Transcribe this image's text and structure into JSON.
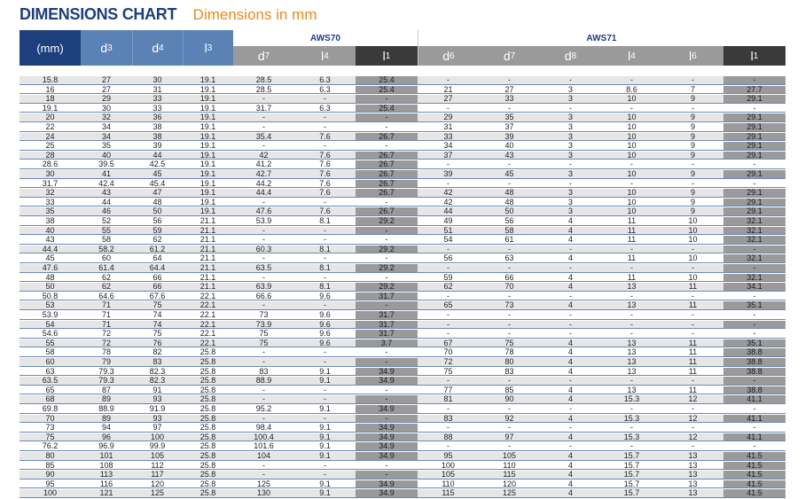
{
  "title": "DIMENSIONS CHART",
  "subtitle": "Dimensions in mm",
  "groups": {
    "aws70": "AWS70",
    "aws71": "AWS71"
  },
  "headers": {
    "mm": "(mm)",
    "d3": "d",
    "d3s": "3",
    "d4": "d",
    "d4s": "4",
    "l3": "l",
    "l3s": "3",
    "a70_d7": "d",
    "a70_d7s": "7",
    "a70_l4": "l",
    "a70_l4s": "4",
    "a70_l1": "l",
    "a70_l1s": "1",
    "a71_d6": "d",
    "a71_d6s": "6",
    "a71_d7": "d",
    "a71_d7s": "7",
    "a71_d8": "d",
    "a71_d8s": "8",
    "a71_l4": "l",
    "a71_l4s": "4",
    "a71_l6": "l",
    "a71_l6s": "6",
    "a71_l1": "l",
    "a71_l1s": "1"
  },
  "colors": {
    "header_dark": "#1d3f7c",
    "header_mid": "#5b82b5",
    "header_grey": "#9a9a9a",
    "header_black": "#3a3a3a",
    "accent": "#e8891c"
  },
  "rows": [
    [
      "15.8",
      "27",
      "30",
      "19.1",
      "28.5",
      "6.3",
      "25.4",
      "-",
      "-",
      "-",
      "-",
      "-",
      "-"
    ],
    [
      "16",
      "27",
      "31",
      "19.1",
      "28.5",
      "6.3",
      "25.4",
      "21",
      "27",
      "3",
      "8.6",
      "7",
      "27.7"
    ],
    [
      "18",
      "29",
      "33",
      "19.1",
      "-",
      "-",
      "-",
      "27",
      "33",
      "3",
      "10",
      "9",
      "29.1"
    ],
    [
      "19.1",
      "30",
      "33",
      "19.1",
      "31.7",
      "6.3",
      "25.4",
      "-",
      "-",
      "-",
      "-",
      "-",
      "-"
    ],
    [
      "20",
      "32",
      "36",
      "19.1",
      "-",
      "-",
      "-",
      "29",
      "35",
      "3",
      "10",
      "9",
      "29.1"
    ],
    [
      "22",
      "34",
      "38",
      "19.1",
      "-",
      "-",
      "-",
      "31",
      "37",
      "3",
      "10",
      "9",
      "29.1"
    ],
    [
      "24",
      "34",
      "38",
      "19.1",
      "35.4",
      "7.6",
      "26.7",
      "33",
      "39",
      "3",
      "10",
      "9",
      "29.1"
    ],
    [
      "25",
      "35",
      "39",
      "19.1",
      "-",
      "-",
      "-",
      "34",
      "40",
      "3",
      "10",
      "9",
      "29.1"
    ],
    [
      "28",
      "40",
      "44",
      "19.1",
      "42",
      "7.6",
      "26.7",
      "37",
      "43",
      "3",
      "10",
      "9",
      "29.1"
    ],
    [
      "28.6",
      "39.5",
      "42.5",
      "19.1",
      "41.2",
      "7.6",
      "26.7",
      "-",
      "-",
      "-",
      "-",
      "-",
      "-"
    ],
    [
      "30",
      "41",
      "45",
      "19.1",
      "42.7",
      "7.6",
      "26.7",
      "39",
      "45",
      "3",
      "10",
      "9",
      "29.1"
    ],
    [
      "31.7",
      "42.4",
      "45.4",
      "19.1",
      "44.2",
      "7.6",
      "26.7",
      "-",
      "-",
      "-",
      "-",
      "-",
      "-"
    ],
    [
      "32",
      "43",
      "47",
      "19.1",
      "44.4",
      "7.6",
      "26.7",
      "42",
      "48",
      "3",
      "10",
      "9",
      "29.1"
    ],
    [
      "33",
      "44",
      "48",
      "19.1",
      "-",
      "-",
      "-",
      "42",
      "48",
      "3",
      "10",
      "9",
      "29.1"
    ],
    [
      "35",
      "46",
      "50",
      "19.1",
      "47.6",
      "7.6",
      "26.7",
      "44",
      "50",
      "3",
      "10",
      "9",
      "29.1"
    ],
    [
      "38",
      "52",
      "56",
      "21.1",
      "53.9",
      "8.1",
      "29.2",
      "49",
      "56",
      "4",
      "11",
      "10",
      "32.1"
    ],
    [
      "40",
      "55",
      "59",
      "21.1",
      "-",
      "-",
      "-",
      "51",
      "58",
      "4",
      "11",
      "10",
      "32.1"
    ],
    [
      "43",
      "58",
      "62",
      "21.1",
      "-",
      "-",
      "-",
      "54",
      "61",
      "4",
      "11",
      "10",
      "32.1"
    ],
    [
      "44.4",
      "58.2",
      "61.2",
      "21.1",
      "60.3",
      "8.1",
      "29.2",
      "-",
      "-",
      "-",
      "-",
      "-",
      "-"
    ],
    [
      "45",
      "60",
      "64",
      "21.1",
      "-",
      "-",
      "-",
      "56",
      "63",
      "4",
      "11",
      "10",
      "32.1"
    ],
    [
      "47.6",
      "61.4",
      "64.4",
      "21.1",
      "63.5",
      "8.1",
      "29.2",
      "-",
      "-",
      "-",
      "-",
      "-",
      "-"
    ],
    [
      "48",
      "62",
      "66",
      "21.1",
      "-",
      "-",
      "-",
      "59",
      "66",
      "4",
      "11",
      "10",
      "32.1"
    ],
    [
      "50",
      "62",
      "66",
      "21.1",
      "63.9",
      "8.1",
      "29.2",
      "62",
      "70",
      "4",
      "13",
      "11",
      "34.1"
    ],
    [
      "50.8",
      "64.6",
      "67.6",
      "22.1",
      "66.6",
      "9.6",
      "31.7",
      "-",
      "-",
      "-",
      "-",
      "-",
      "-"
    ],
    [
      "53",
      "71",
      "75",
      "22.1",
      "-",
      "-",
      "-",
      "65",
      "73",
      "4",
      "13",
      "11",
      "35.1"
    ],
    [
      "53.9",
      "71",
      "74",
      "22.1",
      "73",
      "9.6",
      "31.7",
      "-",
      "-",
      "-",
      "-",
      "-",
      "-"
    ],
    [
      "54",
      "71",
      "74",
      "22.1",
      "73.9",
      "9.6",
      "31.7",
      "-",
      "-",
      "-",
      "-",
      "-",
      "-"
    ],
    [
      "54.6",
      "72",
      "75",
      "22.1",
      "75",
      "9.6",
      "31.7",
      "-",
      "-",
      "-",
      "-",
      "-",
      "-"
    ],
    [
      "55",
      "72",
      "76",
      "22.1",
      "75",
      "9.6",
      "3.7",
      "67",
      "75",
      "4",
      "13",
      "11",
      "35.1"
    ],
    [
      "58",
      "78",
      "82",
      "25.8",
      "-",
      "-",
      "-",
      "70",
      "78",
      "4",
      "13",
      "11",
      "38.8"
    ],
    [
      "60",
      "79",
      "83",
      "25.8",
      "-",
      "-",
      "-",
      "72",
      "80",
      "4",
      "13",
      "11",
      "38.8"
    ],
    [
      "63",
      "79.3",
      "82.3",
      "25.8",
      "83",
      "9.1",
      "34.9",
      "75",
      "83",
      "4",
      "13",
      "11",
      "38.8"
    ],
    [
      "63.5",
      "79.3",
      "82.3",
      "25.8",
      "88.9",
      "9.1",
      "34.9",
      "-",
      "-",
      "-",
      "-",
      "-",
      "-"
    ],
    [
      "65",
      "87",
      "91",
      "25.8",
      "-",
      "-",
      "-",
      "77",
      "85",
      "4",
      "13",
      "11",
      "38.8"
    ],
    [
      "68",
      "89",
      "93",
      "25.8",
      "-",
      "-",
      "-",
      "81",
      "90",
      "4",
      "15.3",
      "12",
      "41.1"
    ],
    [
      "69.8",
      "88.9",
      "91.9",
      "25.8",
      "95.2",
      "9.1",
      "34.9",
      "-",
      "-",
      "-",
      "-",
      "-",
      "-"
    ],
    [
      "70",
      "89",
      "93",
      "25.8",
      "-",
      "-",
      "-",
      "83",
      "92",
      "4",
      "15.3",
      "12",
      "41.1"
    ],
    [
      "73",
      "94",
      "97",
      "25.8",
      "98.4",
      "9.1",
      "34.9",
      "-",
      "-",
      "-",
      "-",
      "-",
      "-"
    ],
    [
      "75",
      "96",
      "100",
      "25.8",
      "100.4",
      "9.1",
      "34.9",
      "88",
      "97",
      "4",
      "15.3",
      "12",
      "41.1"
    ],
    [
      "76.2",
      "96.9",
      "99.9",
      "25.8",
      "101.6",
      "9.1",
      "34.9",
      "-",
      "-",
      "-",
      "-",
      "-",
      "-"
    ],
    [
      "80",
      "101",
      "105",
      "25.8",
      "104",
      "9.1",
      "34.9",
      "95",
      "105",
      "4",
      "15.7",
      "13",
      "41.5"
    ],
    [
      "85",
      "108",
      "112",
      "25.8",
      "-",
      "-",
      "-",
      "100",
      "110",
      "4",
      "15.7",
      "13",
      "41.5"
    ],
    [
      "90",
      "113",
      "117",
      "25.8",
      "-",
      "-",
      "-",
      "105",
      "115",
      "4",
      "15.7",
      "13",
      "41.5"
    ],
    [
      "95",
      "116",
      "120",
      "25.8",
      "125",
      "9.1",
      "34.9",
      "110",
      "120",
      "4",
      "15.7",
      "13",
      "41.5"
    ],
    [
      "100",
      "121",
      "125",
      "25.8",
      "130",
      "9.1",
      "34.9",
      "115",
      "125",
      "4",
      "15.7",
      "13",
      "41.5"
    ]
  ]
}
